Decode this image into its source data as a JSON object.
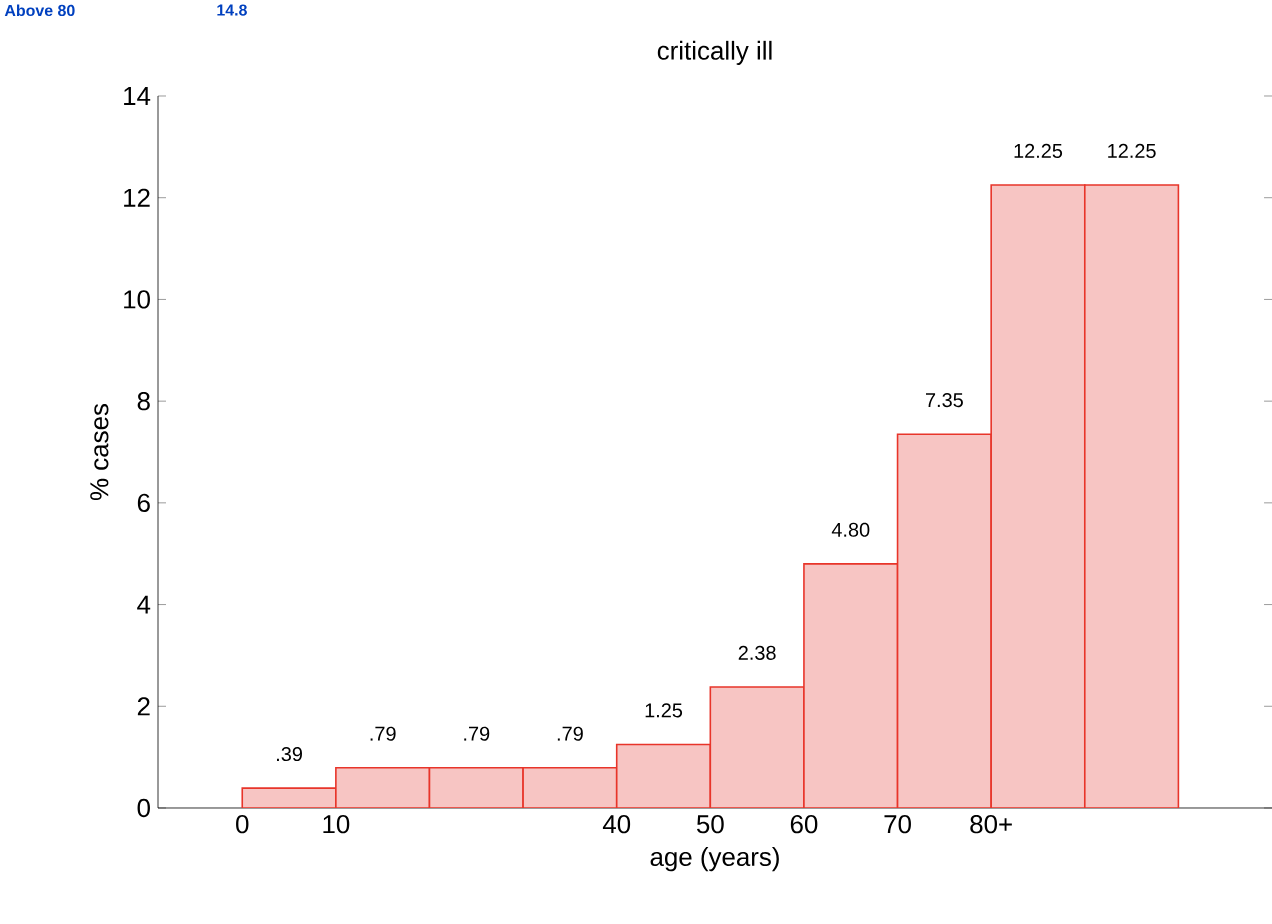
{
  "chart_data": {
    "type": "histogram",
    "title": "critically ill",
    "xlabel": "age (years)",
    "ylabel": "% cases",
    "annotations": [
      "Above 80",
      "14.8"
    ],
    "bins": [
      0,
      10,
      20,
      30,
      40,
      50,
      60,
      70,
      80,
      90,
      100
    ],
    "values": [
      0.39,
      0.79,
      0.79,
      0.79,
      1.25,
      2.38,
      4.8,
      7.35,
      12.25,
      12.25
    ],
    "value_labels": [
      ".39",
      ".79",
      ".79",
      ".79",
      "1.25",
      "2.38",
      "4.80",
      "7.35",
      "12.25",
      "12.25"
    ],
    "color": "#f7c5c3",
    "xlim": [
      -9,
      110
    ],
    "ylim": [
      0,
      14
    ],
    "xticks": [
      0,
      10,
      40,
      50,
      60,
      70,
      {
        "value": 80,
        "label": "80+"
      }
    ],
    "yticks": [
      0,
      2,
      4,
      6,
      8,
      10,
      12,
      14
    ],
    "grid": false
  }
}
